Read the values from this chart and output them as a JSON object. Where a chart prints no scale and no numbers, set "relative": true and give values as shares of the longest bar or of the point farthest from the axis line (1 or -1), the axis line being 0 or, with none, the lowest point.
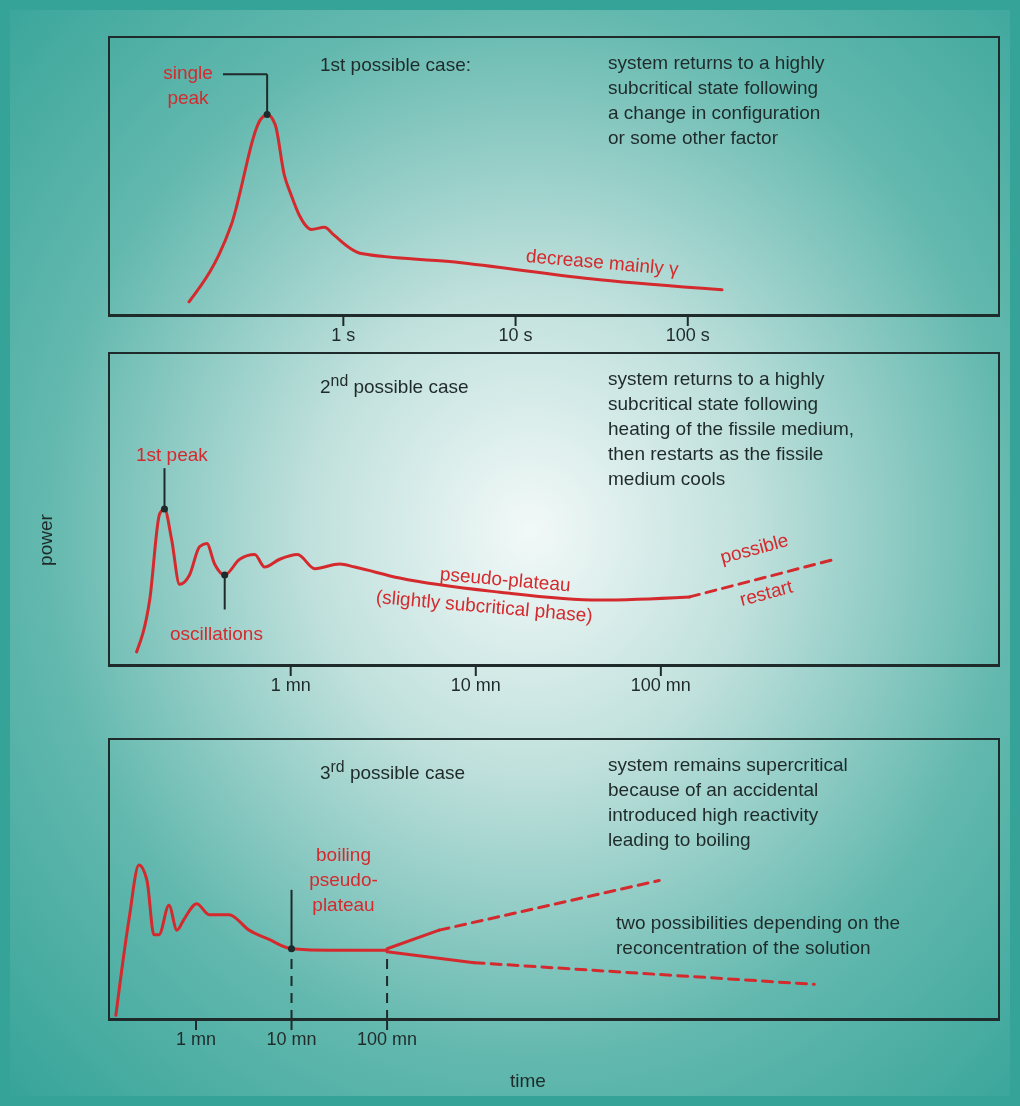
{
  "chart_data": [
    {
      "type": "line",
      "title": "1st possible case:",
      "subtitle": "system returns to a highly\nsubcritical state following\na change in configuration\nor some other factor",
      "relative": true,
      "log": "x",
      "xlim": [
        0.043,
        6500
      ],
      "xticks": [
        {
          "value": 1,
          "label": "1 s"
        },
        {
          "value": 10,
          "label": "10 s"
        },
        {
          "value": 100,
          "label": "100 s"
        }
      ],
      "series": [
        {
          "color": "#d42a2e",
          "x": [
            0.127,
            0.223,
            0.334,
            0.361,
            0.402,
            0.454,
            0.498,
            0.555,
            0.652,
            0.776,
            0.887,
            1.08,
            1.27,
            4.13,
            30.8,
            158
          ],
          "values": [
            0.07,
            0.45,
            0.98,
            1,
            0.95,
            0.7,
            0.6,
            0.5,
            0.43,
            0.44,
            0.4,
            0.34,
            0.31,
            0.27,
            0.18,
            0.13
          ]
        }
      ],
      "annotations": [
        {
          "text": "single peak",
          "x": 0.361,
          "y": 1
        },
        "decrease mainly γ"
      ]
    },
    {
      "type": "line",
      "title": "2$^{nd}$ possible case",
      "subtitle": "system returns to a highly\nsubcritical state following\nheating of the fissile medium,\nthen restarts as the fissile\nmedium cools",
      "ylabel": "power",
      "relative": true,
      "log": "x",
      "xlim": [
        0.103,
        6800
      ],
      "xticks": [
        {
          "value": 1,
          "label": "1 mn"
        },
        {
          "value": 10,
          "label": "10 mn"
        },
        {
          "value": 100,
          "label": "100 mn"
        }
      ],
      "series": [
        {
          "color": "#d42a2e",
          "x": [
            0.147,
            0.173,
            0.196,
            0.208,
            0.227,
            0.251,
            0.284,
            0.322,
            0.352,
            0.388,
            0.44,
            0.53,
            0.639,
            0.723,
            0.872,
            1.09,
            1.35,
            1.84,
            2.22,
            3.88,
            13.5,
            46.8,
            143
          ],
          "values": [
            0.09,
            0.42,
            0.97,
            1,
            0.81,
            0.52,
            0.58,
            0.76,
            0.78,
            0.65,
            0.58,
            0.68,
            0.71,
            0.63,
            0.68,
            0.71,
            0.62,
            0.65,
            0.63,
            0.56,
            0.47,
            0.42,
            0.44
          ]
        },
        {
          "color": "#d42a2e",
          "line_style": "dashed",
          "x": [
            143,
            873
          ],
          "values": [
            0.44,
            0.68
          ]
        }
      ],
      "annotations": [
        {
          "text": "1st peak",
          "x": 0.208,
          "y": 1
        },
        {
          "text": "oscillations",
          "x": 0.44,
          "y": 0.58
        },
        "pseudo-plateau",
        "(slightly subcritical phase)",
        "possible restart"
      ]
    },
    {
      "type": "line",
      "title": "3$^{rd}$ possible case",
      "subtitle": "system remains supercritical\nbecause of an accidental\nintroduced high reactivity\nleading to boiling",
      "xlabel": "time",
      "relative": true,
      "log": "x",
      "xlim": [
        0.12,
        260000000
      ],
      "xticks": [
        {
          "value": 1,
          "label": "1 mn"
        },
        {
          "value": 10,
          "label": "10 mn"
        },
        {
          "value": 100,
          "label": "100 mn"
        }
      ],
      "series": [
        {
          "color": "#d42a2e",
          "x": [
            0.145,
            0.199,
            0.253,
            0.307,
            0.363,
            0.41,
            0.521,
            0.632,
            0.749,
            1.02,
            1.37,
            2.22,
            3.59,
            5.81,
            10,
            24.7,
            100
          ],
          "values": [
            0.03,
            0.65,
            1,
            0.9,
            0.55,
            0.55,
            0.74,
            0.58,
            0.65,
            0.75,
            0.68,
            0.68,
            0.58,
            0.52,
            0.46,
            0.45,
            0.45
          ]
        },
        {
          "color": "#d42a2e",
          "x": [
            100,
            351
          ],
          "values": [
            0.46,
            0.58
          ]
        },
        {
          "color": "#d42a2e",
          "line_style": "dashed",
          "x": [
            351,
            70500
          ],
          "values": [
            0.58,
            0.9
          ]
        },
        {
          "color": "#d42a2e",
          "x": [
            100,
            815
          ],
          "values": [
            0.44,
            0.37
          ]
        },
        {
          "color": "#d42a2e",
          "line_style": "dashed",
          "x": [
            815,
            2960000
          ],
          "values": [
            0.37,
            0.23
          ]
        }
      ],
      "ref_lines": [
        {
          "axis": "x",
          "value": 10,
          "label": null
        },
        {
          "axis": "x",
          "value": 100,
          "label": null
        }
      ],
      "annotations": [
        {
          "text": "boiling pseudo-plateau",
          "x": 10,
          "y": 0.46
        },
        "two possibilities depending on the reconcentration of the solution"
      ]
    }
  ]
}
